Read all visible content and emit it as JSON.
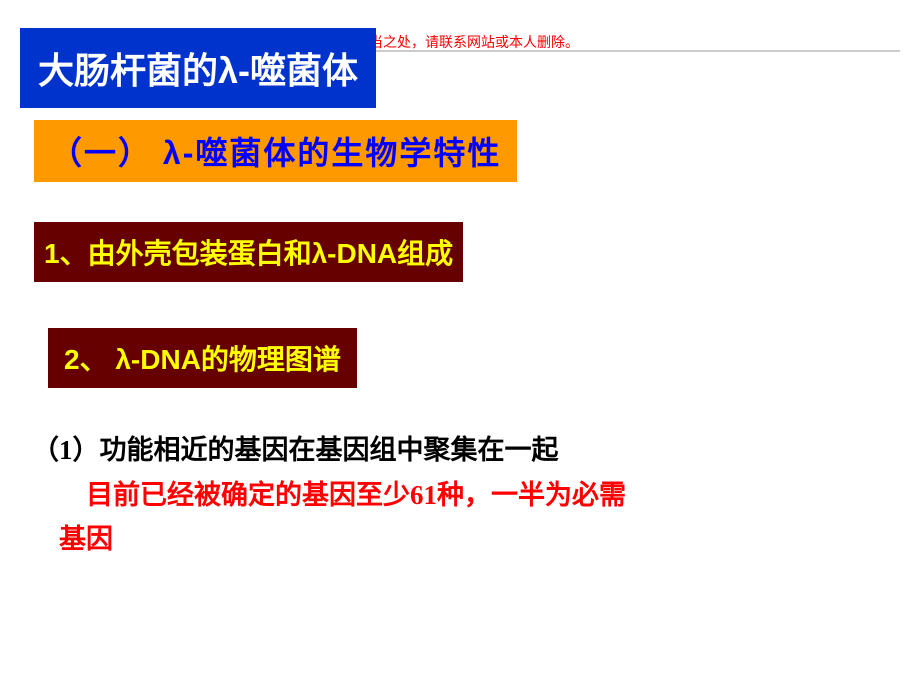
{
  "notice": "有不当之处，请联系网站或本人删除。",
  "title": "大肠杆菌的λ-噬菌体",
  "section": "（一）  λ-噬菌体的生物学特性",
  "item1": "1、由外壳包装蛋白和λ-DNA组成",
  "item2": "2、 λ-DNA的物理图谱",
  "body_black": "（1）功能相近的基因在基因组中聚集在一起",
  "body_red1": "目前已经被确定的基因至少61种，一半为必需",
  "body_red2": "基因",
  "colors": {
    "title_bg": "#0033cc",
    "title_fg": "#ffffff",
    "section_bg": "#ff9900",
    "section_fg": "#0000ff",
    "item_bg": "#660000",
    "item_fg": "#ffff00",
    "notice_fg": "#ff0000",
    "body_red": "#ff0000",
    "body_black": "#000000",
    "background": "#ffffff"
  }
}
